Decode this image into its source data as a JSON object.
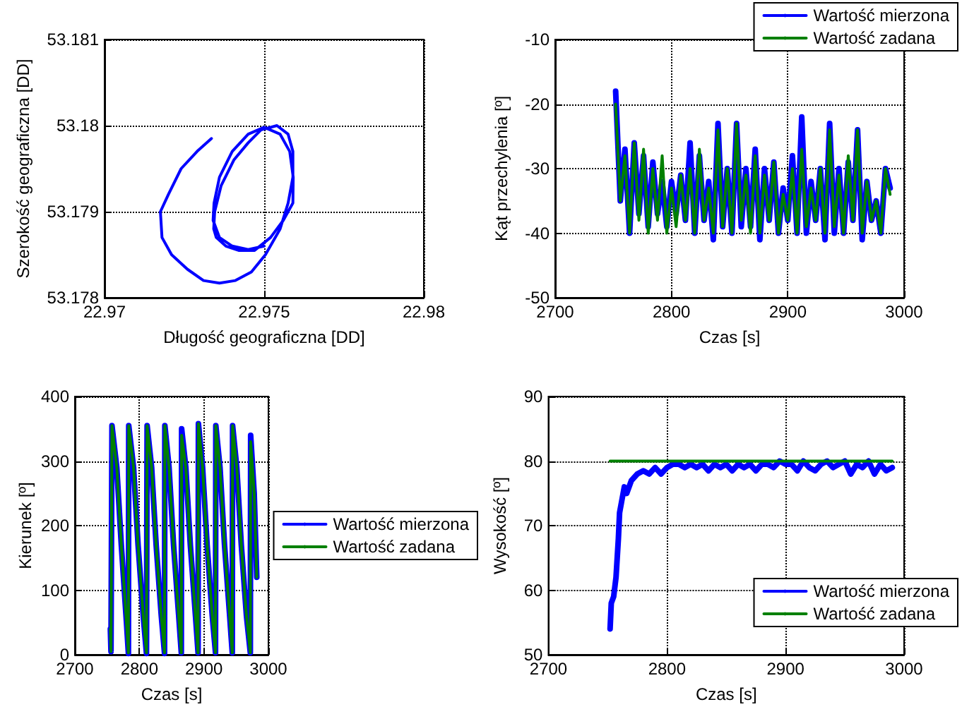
{
  "chart_data": [
    {
      "type": "line",
      "xlabel": "Długość geograficzna [DD]",
      "ylabel": "Szerokość geograficzna [DD]",
      "xlim": [
        22.97,
        22.98
      ],
      "xticks": [
        22.97,
        22.975,
        22.98
      ],
      "ylim": [
        53.178,
        53.181
      ],
      "yticks": [
        53.178,
        53.179,
        53.18,
        53.181
      ],
      "grid": true,
      "series": [
        {
          "color": "#0000ff",
          "x": [
            22.97335,
            22.9729,
            22.9724,
            22.972,
            22.97175,
            22.9718,
            22.9721,
            22.9726,
            22.9731,
            22.9736,
            22.9741,
            22.9746,
            22.97504,
            22.9755,
            22.97575,
            22.9759,
            22.9759,
            22.97575,
            22.9754,
            22.9749,
            22.9745,
            22.97405,
            22.97365,
            22.97345,
            22.97342,
            22.9735,
            22.9738,
            22.9742,
            22.9747,
            22.9752,
            22.9756,
            22.9759,
            22.97591,
            22.9758,
            22.9755,
            22.975,
            22.9745,
            22.974,
            22.9736,
            22.97343,
            22.9734,
            22.9736,
            22.974,
            22.9745,
            22.975
          ],
          "values": [
            53.17985,
            53.1797,
            53.1795,
            53.1792,
            53.179,
            53.1787,
            53.1785,
            53.17833,
            53.1782,
            53.17817,
            53.1782,
            53.1783,
            53.1785,
            53.1788,
            53.1791,
            53.1794,
            53.1797,
            53.1799,
            53.18,
            53.17995,
            53.1798,
            53.1796,
            53.1793,
            53.179,
            53.1788,
            53.1787,
            53.1786,
            53.17855,
            53.17855,
            53.1787,
            53.1789,
            53.1791,
            53.1794,
            53.1797,
            53.1799,
            53.17998,
            53.1799,
            53.1797,
            53.1794,
            53.1791,
            53.1789,
            53.1787,
            53.1786,
            53.17856,
            53.1786
          ]
        }
      ]
    },
    {
      "type": "line",
      "xlabel": "Czas [s]",
      "ylabel": "Kąt przechylenia [º]",
      "xlim": [
        2700,
        3000
      ],
      "xticks": [
        2700,
        2800,
        2900,
        3000
      ],
      "ylim": [
        -50,
        -10
      ],
      "yticks": [
        -50,
        -40,
        -30,
        -20,
        -10
      ],
      "grid": true,
      "legend": "top right",
      "x": [
        2752,
        2756,
        2760,
        2764,
        2768,
        2772,
        2776,
        2780,
        2784,
        2788,
        2792,
        2796,
        2800,
        2804,
        2808,
        2812,
        2816,
        2820,
        2824,
        2828,
        2832,
        2836,
        2840,
        2844,
        2848,
        2852,
        2856,
        2860,
        2864,
        2868,
        2872,
        2876,
        2880,
        2884,
        2888,
        2892,
        2896,
        2900,
        2904,
        2908,
        2912,
        2916,
        2920,
        2924,
        2928,
        2932,
        2936,
        2940,
        2944,
        2948,
        2952,
        2956,
        2960,
        2964,
        2968,
        2972,
        2976,
        2980,
        2984,
        2988
      ],
      "series": [
        {
          "name": "Wartość mierzona",
          "color": "#0000ff",
          "values": [
            -18,
            -35,
            -27,
            -40,
            -26,
            -37,
            -28,
            -39,
            -29,
            -37,
            -32,
            -39,
            -32,
            -37,
            -31,
            -38,
            -26,
            -40,
            -28,
            -38,
            -32,
            -41,
            -23,
            -39,
            -30,
            -40,
            -23,
            -39,
            -30,
            -39,
            -27,
            -41,
            -30,
            -38,
            -29,
            -40,
            -33,
            -38,
            -28,
            -40,
            -22,
            -40,
            -32,
            -38,
            -30,
            -41,
            -23,
            -40,
            -30,
            -40,
            -29,
            -38,
            -24,
            -41,
            -32,
            -38,
            -35,
            -40,
            -30,
            -33
          ]
        },
        {
          "name": "Wartość zadana",
          "color": "#008000",
          "values": [
            -20,
            -35,
            -28,
            -40,
            -26,
            -38,
            -27,
            -40,
            -30,
            -38,
            -28,
            -40,
            -33,
            -39,
            -31,
            -38,
            -30,
            -40,
            -27,
            -38,
            -33,
            -40,
            -24,
            -39,
            -30,
            -40,
            -23,
            -38,
            -31,
            -40,
            -28,
            -40,
            -31,
            -38,
            -29,
            -40,
            -34,
            -38,
            -30,
            -40,
            -27,
            -39,
            -33,
            -38,
            -30,
            -40,
            -24,
            -39,
            -31,
            -40,
            -28,
            -38,
            -24,
            -40,
            -32,
            -38,
            -35,
            -40,
            -30,
            -34
          ]
        }
      ]
    },
    {
      "type": "line",
      "xlabel": "Czas [s]",
      "ylabel": "Kierunek [º]",
      "xlim": [
        2700,
        3000
      ],
      "xticks": [
        2700,
        2800,
        2900,
        3000
      ],
      "ylim": [
        0,
        400
      ],
      "yticks": [
        0,
        100,
        200,
        300,
        400
      ],
      "grid": true,
      "legend": "right",
      "x": [
        2755,
        2756,
        2757.5,
        2765,
        2772,
        2780,
        2783,
        2783.5,
        2791,
        2798,
        2806,
        2811,
        2812,
        2819,
        2826,
        2834,
        2839,
        2839.5,
        2846,
        2853,
        2861,
        2865,
        2865.5,
        2872,
        2879,
        2887,
        2891,
        2891.5,
        2898,
        2905,
        2913,
        2918,
        2918.5,
        2925,
        2932,
        2940,
        2944,
        2944.5,
        2951,
        2958,
        2966,
        2972,
        2972.5,
        2978,
        2982
      ],
      "series": [
        {
          "name": "Wartość mierzona",
          "color": "#0000ff",
          "values": [
            40,
            5,
            355,
            290,
            170,
            50,
            2,
            355,
            290,
            170,
            60,
            2,
            355,
            290,
            170,
            60,
            2,
            355,
            290,
            170,
            60,
            3,
            350,
            290,
            170,
            60,
            3,
            358,
            290,
            170,
            60,
            3,
            355,
            290,
            170,
            60,
            3,
            355,
            290,
            170,
            60,
            3,
            340,
            250,
            120
          ]
        },
        {
          "name": "Wartość zadana",
          "color": "#008000",
          "values": [
            40,
            5,
            355,
            290,
            170,
            50,
            3,
            355,
            290,
            170,
            60,
            3,
            355,
            290,
            170,
            60,
            3,
            355,
            290,
            170,
            60,
            3,
            340,
            290,
            170,
            60,
            3,
            358,
            290,
            170,
            60,
            3,
            355,
            290,
            170,
            60,
            3,
            355,
            290,
            170,
            60,
            3,
            330,
            250,
            120
          ]
        }
      ]
    },
    {
      "type": "line",
      "xlabel": "Czas [s]",
      "ylabel": "Wysokość [º]",
      "xlim": [
        2700,
        3000
      ],
      "xticks": [
        2700,
        2800,
        2900,
        3000
      ],
      "ylim": [
        50,
        90
      ],
      "yticks": [
        50,
        60,
        70,
        80,
        90
      ],
      "grid": true,
      "legend": "bottom right",
      "series": [
        {
          "name": "Wartość mierzona",
          "color": "#0000ff",
          "x": [
            2752,
            2753,
            2755,
            2757,
            2759,
            2760,
            2762,
            2764,
            2766,
            2768,
            2770,
            2775,
            2780,
            2785,
            2790,
            2795,
            2800,
            2805,
            2810,
            2815,
            2820,
            2825,
            2830,
            2835,
            2840,
            2845,
            2850,
            2855,
            2860,
            2865,
            2870,
            2875,
            2880,
            2885,
            2890,
            2895,
            2900,
            2905,
            2910,
            2915,
            2920,
            2925,
            2930,
            2935,
            2940,
            2945,
            2950,
            2955,
            2960,
            2965,
            2970,
            2975,
            2980,
            2985,
            2990
          ],
          "values": [
            54,
            58,
            59,
            62,
            68,
            72,
            74,
            76,
            75,
            76,
            77,
            78,
            78.5,
            78,
            79,
            78,
            79,
            79.5,
            79.5,
            79,
            79.5,
            79,
            79.5,
            78.5,
            79.5,
            79,
            79.5,
            78.5,
            79.5,
            79,
            79.5,
            78.5,
            79.5,
            79.5,
            79,
            80,
            79.5,
            79.5,
            78.5,
            80,
            79,
            78.5,
            79.5,
            80,
            79,
            79.5,
            80,
            78,
            79.5,
            79,
            80,
            78,
            79.5,
            78.5,
            79
          ]
        },
        {
          "name": "Wartość zadana",
          "color": "#008000",
          "x": [
            2752,
            2990
          ],
          "values": [
            80,
            80
          ]
        }
      ]
    }
  ]
}
